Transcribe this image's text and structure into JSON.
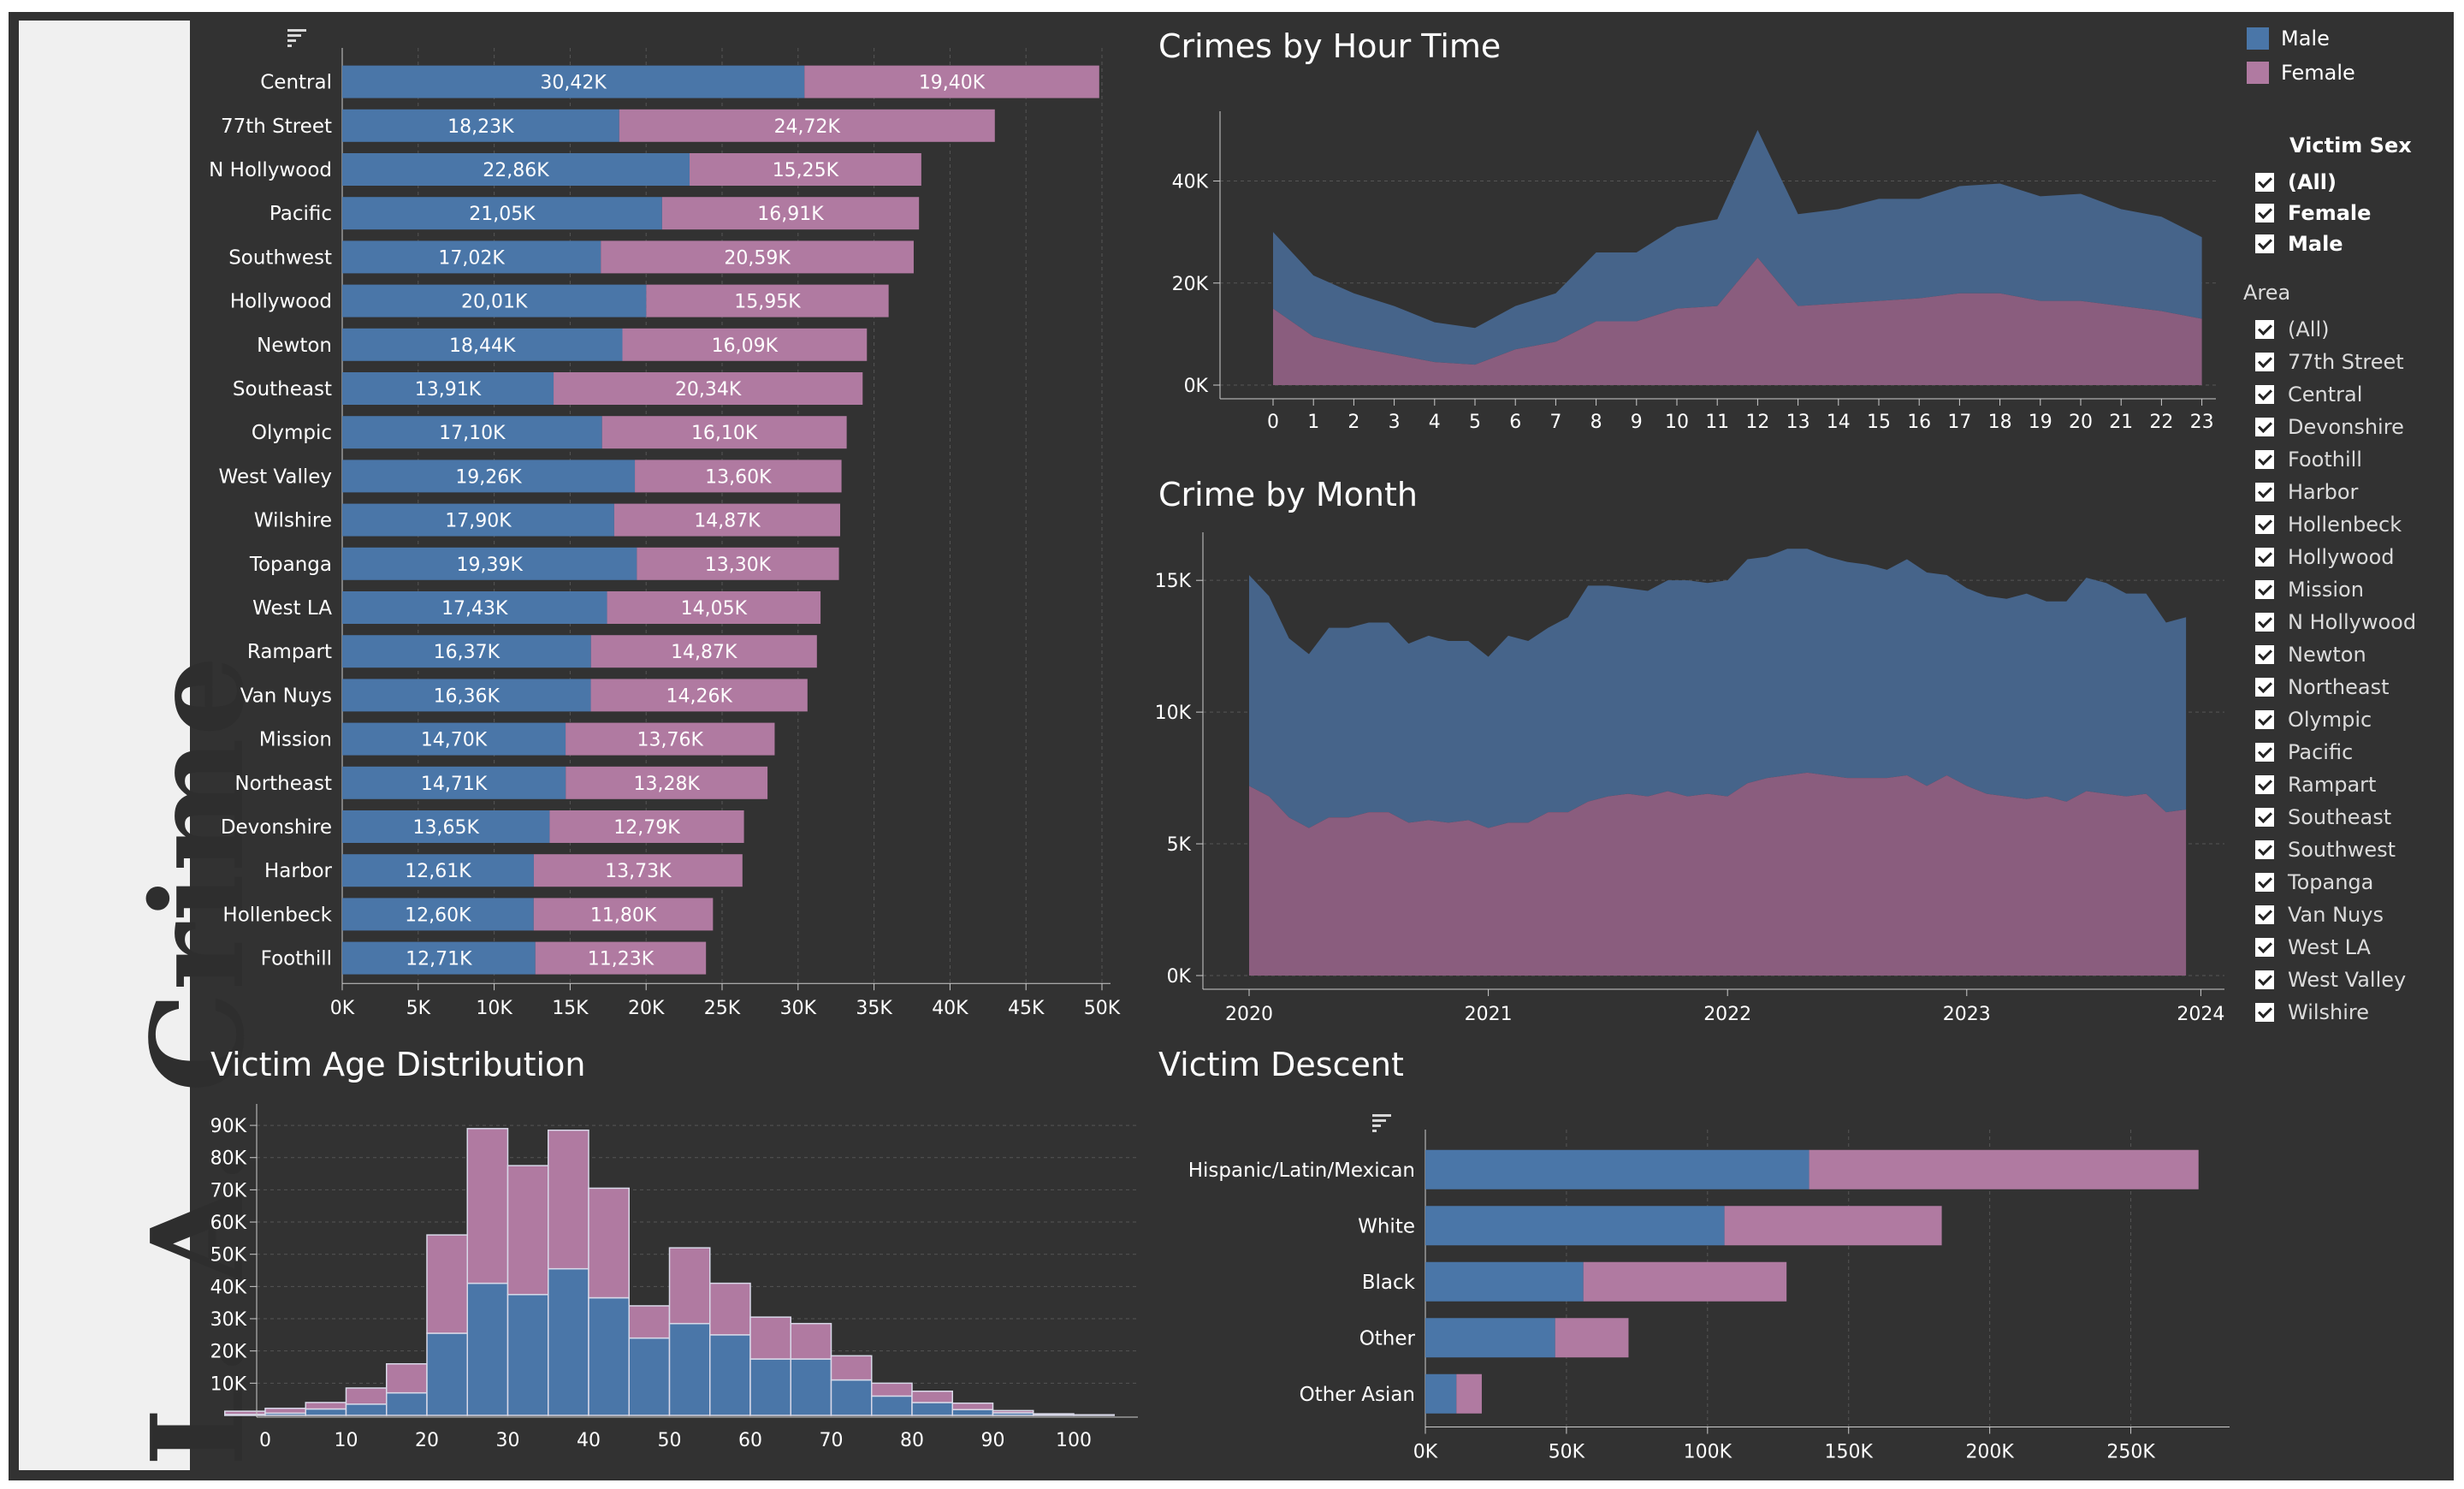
{
  "app": {
    "title": "L. A. Crime"
  },
  "colors": {
    "male": "#4a76a8",
    "female": "#b07aa1",
    "background": "#323232",
    "grid": "#555555",
    "axis": "#cccccc",
    "text": "#ffffff"
  },
  "legend": {
    "items": [
      {
        "label": "Male",
        "color": "#4a76a8"
      },
      {
        "label": "Female",
        "color": "#b07aa1"
      }
    ]
  },
  "filters": {
    "victim_sex": {
      "title": "Victim Sex",
      "items": [
        "(All)",
        "Female",
        "Male"
      ]
    },
    "area": {
      "title": "Area",
      "items": [
        "(All)",
        "77th Street",
        "Central",
        "Devonshire",
        "Foothill",
        "Harbor",
        "Hollenbeck",
        "Hollywood",
        "Mission",
        "N Hollywood",
        "Newton",
        "Northeast",
        "Olympic",
        "Pacific",
        "Rampart",
        "Southeast",
        "Southwest",
        "Topanga",
        "Van Nuys",
        "West LA",
        "West Valley",
        "Wilshire"
      ]
    }
  },
  "sections": {
    "hour": "Crimes by Hour Time",
    "month": "Crime by Month",
    "age": "Victim Age Distribution",
    "descent": "Victim Descent"
  },
  "chart_data": [
    {
      "id": "area",
      "type": "bar",
      "orientation": "horizontal",
      "stacked": true,
      "categories": [
        "Central",
        "77th Street",
        "N Hollywood",
        "Pacific",
        "Southwest",
        "Hollywood",
        "Newton",
        "Southeast",
        "Olympic",
        "West Valley",
        "Wilshire",
        "Topanga",
        "West LA",
        "Rampart",
        "Van Nuys",
        "Mission",
        "Northeast",
        "Devonshire",
        "Harbor",
        "Hollenbeck",
        "Foothill"
      ],
      "series": [
        {
          "name": "Male",
          "values": [
            30.42,
            18.23,
            22.86,
            21.05,
            17.02,
            20.01,
            18.44,
            13.91,
            17.1,
            19.26,
            17.9,
            19.39,
            17.43,
            16.37,
            16.36,
            14.7,
            14.71,
            13.65,
            12.61,
            12.6,
            12.71
          ],
          "labels": [
            "30,42K",
            "18,23K",
            "22,86K",
            "21,05K",
            "17,02K",
            "20,01K",
            "18,44K",
            "13,91K",
            "17,10K",
            "19,26K",
            "17,90K",
            "19,39K",
            "17,43K",
            "16,37K",
            "16,36K",
            "14,70K",
            "14,71K",
            "13,65K",
            "12,61K",
            "12,60K",
            "12,71K"
          ]
        },
        {
          "name": "Female",
          "values": [
            19.4,
            24.72,
            15.25,
            16.91,
            20.59,
            15.95,
            16.09,
            20.34,
            16.1,
            13.6,
            14.87,
            13.3,
            14.05,
            14.87,
            14.26,
            13.76,
            13.28,
            12.79,
            13.73,
            11.8,
            11.23
          ],
          "labels": [
            "19,40K",
            "24,72K",
            "15,25K",
            "16,91K",
            "20,59K",
            "15,95K",
            "16,09K",
            "20,34K",
            "16,10K",
            "13,60K",
            "14,87K",
            "13,30K",
            "14,05K",
            "14,87K",
            "14,26K",
            "13,76K",
            "13,28K",
            "12,79K",
            "13,73K",
            "11,80K",
            "11,23K"
          ]
        }
      ],
      "xlim": [
        0,
        50
      ],
      "x_ticks": [
        "0K",
        "5K",
        "10K",
        "15K",
        "20K",
        "25K",
        "30K",
        "35K",
        "40K",
        "45K",
        "50K"
      ],
      "grid": true
    },
    {
      "id": "hour",
      "type": "area",
      "title": "Crimes by Hour Time",
      "x": [
        0,
        1,
        2,
        3,
        4,
        5,
        6,
        7,
        8,
        9,
        10,
        11,
        12,
        13,
        14,
        15,
        16,
        17,
        18,
        19,
        20,
        21,
        22,
        23
      ],
      "series": [
        {
          "name": "Male",
          "values": [
            15,
            12,
            10.5,
            9.5,
            7.8,
            7.2,
            8.5,
            9.5,
            13.5,
            13.5,
            16,
            17,
            25,
            18,
            18.5,
            20,
            19.5,
            21,
            21.5,
            20.5,
            21,
            19,
            18.5,
            16
          ]
        },
        {
          "name": "Female",
          "values": [
            15,
            9.5,
            7.5,
            6,
            4.5,
            4,
            7,
            8.5,
            12.5,
            12.5,
            15,
            15.5,
            25,
            15.5,
            16,
            16.5,
            17,
            18,
            18,
            16.5,
            16.5,
            15.5,
            14.5,
            13
          ]
        }
      ],
      "stacked": true,
      "ylim": [
        0,
        52
      ],
      "y_ticks": [
        "0K",
        "20K",
        "40K"
      ],
      "x_ticks": [
        "0",
        "1",
        "2",
        "3",
        "4",
        "5",
        "6",
        "7",
        "8",
        "9",
        "10",
        "11",
        "12",
        "13",
        "14",
        "15",
        "16",
        "17",
        "18",
        "19",
        "20",
        "21",
        "22",
        "23"
      ],
      "grid": true
    },
    {
      "id": "month",
      "type": "area",
      "title": "Crime by Month",
      "x": [
        "2020-01",
        "2020-02",
        "2020-03",
        "2020-04",
        "2020-05",
        "2020-06",
        "2020-07",
        "2020-08",
        "2020-09",
        "2020-10",
        "2020-11",
        "2020-12",
        "2021-01",
        "2021-02",
        "2021-03",
        "2021-04",
        "2021-05",
        "2021-06",
        "2021-07",
        "2021-08",
        "2021-09",
        "2021-10",
        "2021-11",
        "2021-12",
        "2022-01",
        "2022-02",
        "2022-03",
        "2022-04",
        "2022-05",
        "2022-06",
        "2022-07",
        "2022-08",
        "2022-09",
        "2022-10",
        "2022-11",
        "2022-12",
        "2023-01",
        "2023-02",
        "2023-03",
        "2023-04",
        "2023-05",
        "2023-06",
        "2023-07",
        "2023-08",
        "2023-09",
        "2023-10",
        "2023-11",
        "2023-12"
      ],
      "series": [
        {
          "name": "Male",
          "values": [
            8.0,
            7.6,
            6.8,
            6.6,
            7.2,
            7.2,
            7.2,
            7.2,
            6.8,
            7.0,
            6.9,
            6.8,
            6.5,
            7.1,
            6.9,
            7.0,
            7.4,
            8.2,
            8.0,
            7.8,
            7.8,
            8.0,
            8.2,
            8.0,
            8.2,
            8.5,
            8.4,
            8.6,
            8.5,
            8.3,
            8.2,
            8.1,
            7.9,
            8.2,
            8.1,
            7.6,
            7.5,
            7.5,
            7.5,
            7.8,
            7.4,
            7.6,
            8.1,
            8.0,
            7.7,
            7.6,
            7.2,
            7.3
          ],
          "total_for_reference": null
        },
        {
          "name": "Female",
          "values": [
            7.2,
            6.8,
            6.0,
            5.6,
            6.0,
            6.0,
            6.2,
            6.2,
            5.8,
            5.9,
            5.8,
            5.9,
            5.6,
            5.8,
            5.8,
            6.2,
            6.2,
            6.6,
            6.8,
            6.9,
            6.8,
            7.0,
            6.8,
            6.9,
            6.8,
            7.3,
            7.5,
            7.6,
            7.7,
            7.6,
            7.5,
            7.5,
            7.5,
            7.6,
            7.2,
            7.6,
            7.2,
            6.9,
            6.8,
            6.7,
            6.8,
            6.6,
            7.0,
            6.9,
            6.8,
            6.9,
            6.2,
            6.3
          ]
        }
      ],
      "stacked": true,
      "ylim": [
        0,
        16.5
      ],
      "y_ticks": [
        "0K",
        "5K",
        "10K",
        "15K"
      ],
      "x_ticks": [
        "2020",
        "2021",
        "2022",
        "2023",
        "2024"
      ],
      "grid": true
    },
    {
      "id": "age",
      "type": "bar",
      "title": "Victim Age Distribution",
      "stacked": true,
      "bin_starts": [
        -5,
        0,
        5,
        10,
        15,
        20,
        25,
        30,
        35,
        40,
        45,
        50,
        55,
        60,
        65,
        70,
        75,
        80,
        85,
        90,
        95,
        100
      ],
      "series": [
        {
          "name": "Male",
          "values": [
            0.3,
            0.7,
            2,
            3.5,
            7,
            25.5,
            41,
            37.5,
            45.5,
            36.5,
            24,
            28.5,
            25,
            17.5,
            17.5,
            11,
            6,
            4,
            1.8,
            0.8,
            0.3,
            0.1
          ]
        },
        {
          "name": "Female",
          "values": [
            1,
            1.5,
            2,
            5,
            9,
            30.5,
            48,
            40,
            43,
            34,
            10,
            23.5,
            16,
            13,
            11,
            7.5,
            4,
            3.5,
            2,
            0.7,
            0.2,
            0.1
          ]
        }
      ],
      "ylim": [
        0,
        94
      ],
      "y_ticks": [
        "10K",
        "20K",
        "30K",
        "40K",
        "50K",
        "60K",
        "70K",
        "80K",
        "90K"
      ],
      "x_ticks": [
        "0",
        "10",
        "20",
        "30",
        "40",
        "50",
        "60",
        "70",
        "80",
        "90",
        "100"
      ],
      "grid": true
    },
    {
      "id": "descent",
      "type": "bar",
      "title": "Victim Descent",
      "orientation": "horizontal",
      "stacked": true,
      "categories": [
        "Hispanic/Latin/Mexican",
        "White",
        "Black",
        "Other",
        "Other Asian"
      ],
      "series": [
        {
          "name": "Male",
          "values": [
            136,
            106,
            56,
            46,
            11
          ]
        },
        {
          "name": "Female",
          "values": [
            138,
            77,
            72,
            26,
            9
          ]
        }
      ],
      "xlim": [
        0,
        285
      ],
      "x_ticks": [
        "0K",
        "50K",
        "100K",
        "150K",
        "200K",
        "250K"
      ],
      "grid": true
    }
  ]
}
